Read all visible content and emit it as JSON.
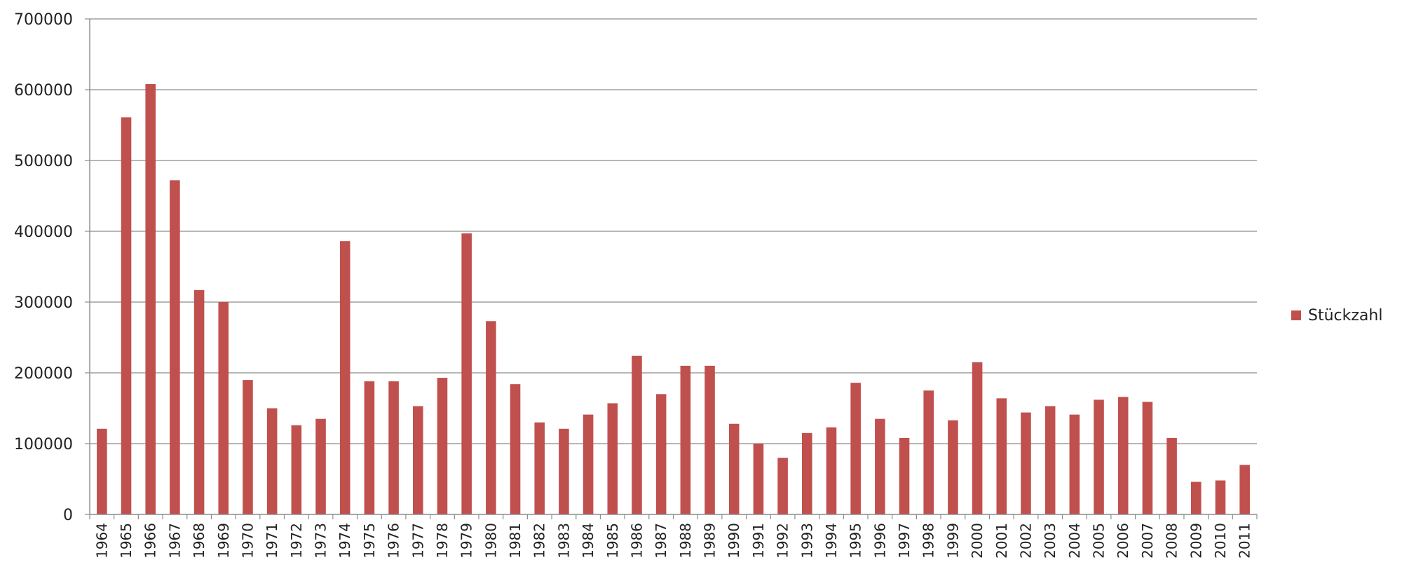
{
  "chart_data": {
    "type": "bar",
    "title": "",
    "xlabel": "",
    "ylabel": "",
    "ylim": [
      0,
      700000
    ],
    "yticks": [
      0,
      100000,
      200000,
      300000,
      400000,
      500000,
      600000,
      700000
    ],
    "grid": true,
    "legend_position": "right",
    "bar_color": "#c0504d",
    "categories": [
      "1964",
      "1965",
      "1966",
      "1967",
      "1968",
      "1969",
      "1970",
      "1971",
      "1972",
      "1973",
      "1974",
      "1975",
      "1976",
      "1977",
      "1978",
      "1979",
      "1980",
      "1981",
      "1982",
      "1983",
      "1984",
      "1985",
      "1986",
      "1987",
      "1988",
      "1989",
      "1990",
      "1991",
      "1992",
      "1993",
      "1994",
      "1995",
      "1996",
      "1997",
      "1998",
      "1999",
      "2000",
      "2001",
      "2002",
      "2003",
      "2004",
      "2005",
      "2006",
      "2007",
      "2008",
      "2009",
      "2010",
      "2011"
    ],
    "series": [
      {
        "name": "Stückzahl",
        "values": [
          121000,
          561000,
          608000,
          472000,
          317000,
          300000,
          190000,
          150000,
          126000,
          135000,
          386000,
          188000,
          188000,
          153000,
          193000,
          397000,
          273000,
          184000,
          130000,
          121000,
          141000,
          157000,
          224000,
          170000,
          210000,
          210000,
          128000,
          100000,
          80000,
          115000,
          123000,
          186000,
          135000,
          108000,
          175000,
          133000,
          215000,
          164000,
          144000,
          153000,
          141000,
          162000,
          166000,
          159000,
          108000,
          46000,
          48000,
          70000
        ]
      }
    ]
  }
}
